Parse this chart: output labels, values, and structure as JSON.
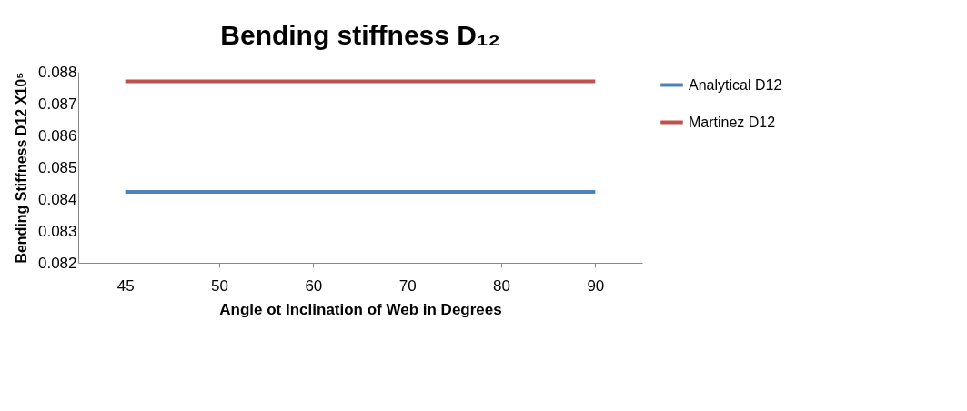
{
  "chart_data": {
    "type": "line",
    "title": "Bending stiffness D₁₂",
    "xlabel": "Angle ot Inclination of Web in Degrees",
    "ylabel": "Bending Stiffness D12  X10⁵",
    "categories": [
      "45",
      "50",
      "60",
      "70",
      "80",
      "90"
    ],
    "series": [
      {
        "name": "Analytical D12",
        "color": "#4f81bd",
        "values": [
          0.08423,
          0.08423,
          0.08423,
          0.08423,
          0.08423,
          0.08423
        ]
      },
      {
        "name": "Martinez D12",
        "color": "#c0504d",
        "values": [
          0.0877,
          0.0877,
          0.0877,
          0.0877,
          0.0877,
          0.0877
        ]
      }
    ],
    "ylim": [
      0.082,
      0.088
    ],
    "yticks": [
      0.082,
      0.083,
      0.084,
      0.085,
      0.086,
      0.087,
      0.088
    ],
    "grid": false,
    "legend": "right",
    "marker": "none",
    "line_style": "solid"
  }
}
